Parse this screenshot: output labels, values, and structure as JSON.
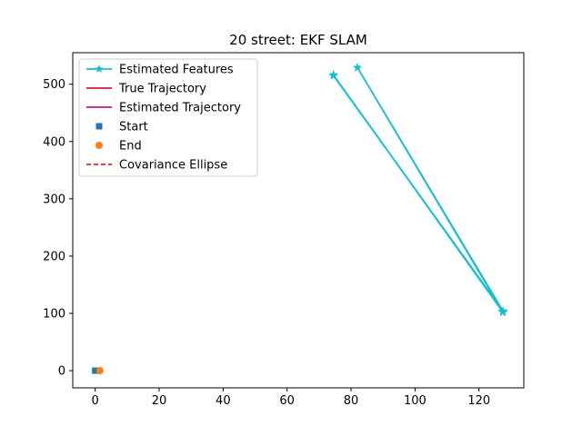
{
  "chart_data": {
    "type": "line",
    "title": "20 street: EKF SLAM",
    "xlabel": "",
    "ylabel": "",
    "xlim": [
      -7,
      134
    ],
    "ylim": [
      -30,
      555
    ],
    "xticks": [
      0,
      20,
      40,
      60,
      80,
      100,
      120
    ],
    "yticks": [
      0,
      100,
      200,
      300,
      400,
      500
    ],
    "grid": false,
    "legend_position": "top-left",
    "series": [
      {
        "name": "Estimated Features",
        "kind": "line-star",
        "color": "#17becf",
        "points": [
          [
            74.5,
            515
          ],
          [
            127.5,
            104
          ],
          [
            82,
            529
          ],
          [
            127.5,
            102
          ],
          [
            74.5,
            516
          ],
          [
            127.5,
            103
          ]
        ]
      },
      {
        "name": "True Trajectory",
        "kind": "line",
        "color": "#dc143c",
        "points": [
          [
            0,
            0
          ],
          [
            1.5,
            0
          ]
        ]
      },
      {
        "name": "Estimated Trajectory",
        "kind": "line",
        "color": "#c71585",
        "points": [
          [
            0,
            0
          ],
          [
            1.5,
            0
          ]
        ]
      },
      {
        "name": "Start",
        "kind": "square",
        "color": "#1f77b4",
        "points": [
          [
            0,
            0
          ]
        ]
      },
      {
        "name": "End",
        "kind": "circle",
        "color": "#ff7f0e",
        "points": [
          [
            1.5,
            0
          ]
        ]
      },
      {
        "name": "Covariance Ellipse",
        "kind": "dashed",
        "color": "#d62728",
        "points": []
      }
    ]
  }
}
